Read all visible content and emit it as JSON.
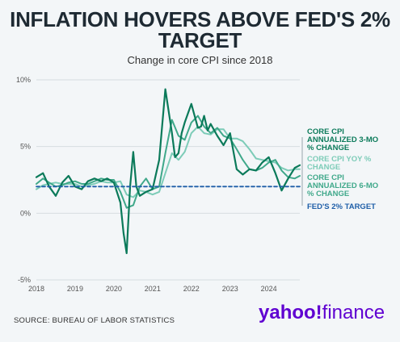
{
  "title": "INFLATION HOVERS ABOVE FED'S 2% TARGET",
  "subtitle": "Change in core CPI since 2018",
  "source": "SOURCE: BUREAU OF LABOR STATISTICS",
  "logo": {
    "yahoo": "yahoo!",
    "finance": "finance"
  },
  "chart_data": {
    "type": "line",
    "xlim": [
      2018,
      2024.8
    ],
    "ylim": [
      -5,
      10
    ],
    "x_ticks": [
      "2018",
      "2019",
      "2020",
      "2021",
      "2022",
      "2023",
      "2024"
    ],
    "y_ticks": [
      {
        "value": 10,
        "label": "10%"
      },
      {
        "value": 5,
        "label": "5%"
      },
      {
        "value": 0,
        "label": "0%"
      },
      {
        "value": -5,
        "label": "-5%"
      }
    ],
    "grid": true,
    "legend": "right, inline labels",
    "series": [
      {
        "name": "CORE CPI ANNUALIZED 3-MO % CHANGE",
        "color": "#0b7a5a",
        "x": [
          2018.0,
          2018.17,
          2018.33,
          2018.5,
          2018.67,
          2018.83,
          2019.0,
          2019.17,
          2019.33,
          2019.5,
          2019.67,
          2019.83,
          2020.0,
          2020.17,
          2020.25,
          2020.33,
          2020.42,
          2020.5,
          2020.58,
          2020.67,
          2020.83,
          2021.0,
          2021.17,
          2021.33,
          2021.5,
          2021.58,
          2021.67,
          2021.75,
          2021.83,
          2022.0,
          2022.17,
          2022.25,
          2022.33,
          2022.42,
          2022.5,
          2022.67,
          2022.83,
          2023.0,
          2023.17,
          2023.33,
          2023.5,
          2023.67,
          2023.83,
          2024.0,
          2024.17,
          2024.33,
          2024.5,
          2024.67,
          2024.8
        ],
        "values": [
          2.7,
          3.0,
          2.0,
          1.3,
          2.3,
          2.8,
          2.0,
          1.8,
          2.4,
          2.6,
          2.4,
          2.6,
          2.3,
          0.8,
          -1.5,
          -3.0,
          2.0,
          4.6,
          2.0,
          1.3,
          1.6,
          1.8,
          4.0,
          9.3,
          6.0,
          4.2,
          4.5,
          6.0,
          6.8,
          8.2,
          6.4,
          6.5,
          7.3,
          6.2,
          6.7,
          5.8,
          5.1,
          6.0,
          3.3,
          2.9,
          3.3,
          3.2,
          3.8,
          4.2,
          3.0,
          1.7,
          2.6,
          3.4,
          3.6
        ]
      },
      {
        "name": "CORE CPI YOY % CHANGE",
        "color": "#7dccb8",
        "x": [
          2018.0,
          2018.17,
          2018.33,
          2018.5,
          2018.67,
          2018.83,
          2019.0,
          2019.17,
          2019.33,
          2019.5,
          2019.67,
          2019.83,
          2020.0,
          2020.17,
          2020.33,
          2020.5,
          2020.67,
          2020.83,
          2021.0,
          2021.17,
          2021.33,
          2021.5,
          2021.67,
          2021.83,
          2022.0,
          2022.17,
          2022.33,
          2022.5,
          2022.67,
          2022.83,
          2023.0,
          2023.17,
          2023.33,
          2023.5,
          2023.67,
          2023.83,
          2024.0,
          2024.17,
          2024.33,
          2024.5,
          2024.67,
          2024.8
        ],
        "values": [
          1.8,
          2.1,
          2.2,
          2.3,
          2.2,
          2.2,
          2.2,
          2.0,
          2.1,
          2.2,
          2.4,
          2.3,
          2.3,
          2.4,
          1.4,
          1.2,
          1.7,
          1.6,
          1.4,
          1.6,
          3.0,
          4.5,
          4.0,
          4.6,
          6.0,
          6.5,
          6.0,
          5.9,
          6.3,
          6.3,
          5.6,
          5.6,
          5.4,
          4.8,
          4.1,
          4.0,
          3.9,
          3.8,
          3.4,
          3.2,
          3.3,
          3.3
        ]
      },
      {
        "name": "CORE CPI ANNUALIZED 6-MO % CHANGE",
        "color": "#3fa88a",
        "x": [
          2018.0,
          2018.17,
          2018.33,
          2018.5,
          2018.67,
          2018.83,
          2019.0,
          2019.17,
          2019.33,
          2019.5,
          2019.67,
          2019.83,
          2020.0,
          2020.17,
          2020.33,
          2020.5,
          2020.67,
          2020.83,
          2021.0,
          2021.17,
          2021.33,
          2021.5,
          2021.67,
          2021.83,
          2022.0,
          2022.17,
          2022.33,
          2022.5,
          2022.67,
          2022.83,
          2023.0,
          2023.17,
          2023.33,
          2023.5,
          2023.67,
          2023.83,
          2024.0,
          2024.17,
          2024.33,
          2024.5,
          2024.67,
          2024.8
        ],
        "values": [
          2.2,
          2.6,
          2.3,
          2.0,
          2.1,
          2.3,
          2.4,
          2.2,
          2.2,
          2.4,
          2.6,
          2.5,
          2.5,
          1.6,
          0.4,
          0.6,
          2.0,
          2.6,
          1.8,
          2.0,
          4.5,
          7.0,
          5.8,
          5.5,
          6.8,
          7.3,
          6.5,
          6.0,
          6.4,
          5.8,
          5.6,
          4.8,
          4.0,
          3.3,
          3.2,
          3.4,
          3.8,
          4.0,
          3.2,
          2.7,
          2.6,
          2.8
        ]
      },
      {
        "name": "FED'S 2% TARGET",
        "color": "#1f5fa8",
        "dashed": true,
        "x": [
          2018.0,
          2024.8
        ],
        "values": [
          2,
          2
        ]
      }
    ]
  }
}
